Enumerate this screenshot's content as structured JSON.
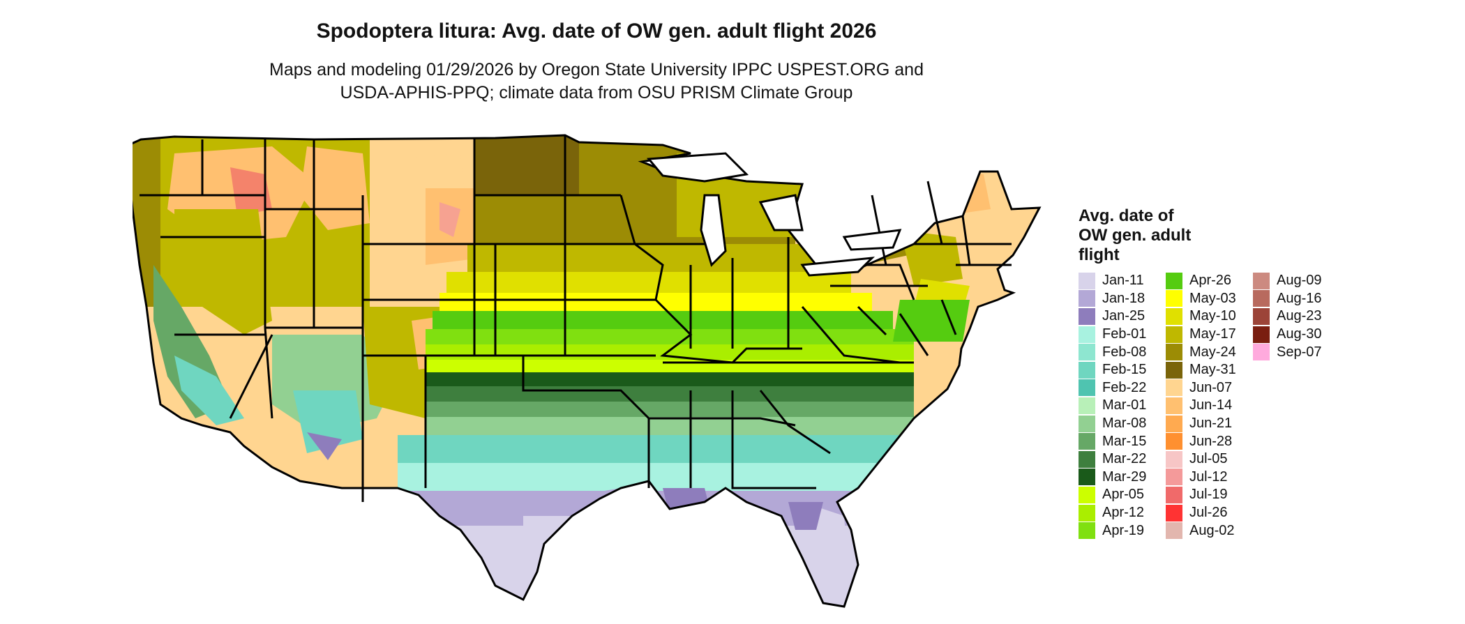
{
  "header": {
    "title": "Spodoptera litura: Avg. date of OW gen. adult flight 2026",
    "subtitle_line1": "Maps and modeling 01/29/2026 by Oregon State University IPPC USPEST.ORG and",
    "subtitle_line2": "USDA-APHIS-PPQ; climate data from OSU PRISM Climate Group"
  },
  "legend": {
    "title_line1": "Avg. date of",
    "title_line2": "OW gen. adult",
    "title_line3": "flight",
    "columns": [
      [
        {
          "label": "Jan-11",
          "color": "#d8d3ea"
        },
        {
          "label": "Jan-18",
          "color": "#b3a8d6"
        },
        {
          "label": "Jan-25",
          "color": "#8e7dbc"
        },
        {
          "label": "Feb-01",
          "color": "#a8f2e0"
        },
        {
          "label": "Feb-08",
          "color": "#8ee6d0"
        },
        {
          "label": "Feb-15",
          "color": "#6fd6c0"
        },
        {
          "label": "Feb-22",
          "color": "#4fc4b0"
        },
        {
          "label": "Mar-01",
          "color": "#b8f0b8"
        },
        {
          "label": "Mar-08",
          "color": "#92d092"
        },
        {
          "label": "Mar-15",
          "color": "#66a866"
        },
        {
          "label": "Mar-22",
          "color": "#3e7f3e"
        },
        {
          "label": "Mar-29",
          "color": "#1a5a1a"
        },
        {
          "label": "Apr-05",
          "color": "#ccff00"
        },
        {
          "label": "Apr-12",
          "color": "#aaee00"
        },
        {
          "label": "Apr-19",
          "color": "#80e010"
        }
      ],
      [
        {
          "label": "Apr-26",
          "color": "#55cc10"
        },
        {
          "label": "May-03",
          "color": "#ffff00"
        },
        {
          "label": "May-10",
          "color": "#e0e000"
        },
        {
          "label": "May-17",
          "color": "#bfb800"
        },
        {
          "label": "May-24",
          "color": "#9c8c05"
        },
        {
          "label": "May-31",
          "color": "#7a640a"
        },
        {
          "label": "Jun-07",
          "color": "#ffd590"
        },
        {
          "label": "Jun-14",
          "color": "#ffc070"
        },
        {
          "label": "Jun-21",
          "color": "#ffaa50"
        },
        {
          "label": "Jun-28",
          "color": "#ff9030"
        },
        {
          "label": "Jul-05",
          "color": "#f7c6c6"
        },
        {
          "label": "Jul-12",
          "color": "#f49a9a"
        },
        {
          "label": "Jul-19",
          "color": "#f06a6a"
        },
        {
          "label": "Jul-26",
          "color": "#ff3333"
        },
        {
          "label": "Aug-02",
          "color": "#e2b6ae"
        }
      ],
      [
        {
          "label": "Aug-09",
          "color": "#cc8a80"
        },
        {
          "label": "Aug-16",
          "color": "#b86a5e"
        },
        {
          "label": "Aug-23",
          "color": "#9c4438"
        },
        {
          "label": "Aug-30",
          "color": "#7a1e10"
        },
        {
          "label": "Sep-07",
          "color": "#ffaadd"
        }
      ]
    ]
  }
}
